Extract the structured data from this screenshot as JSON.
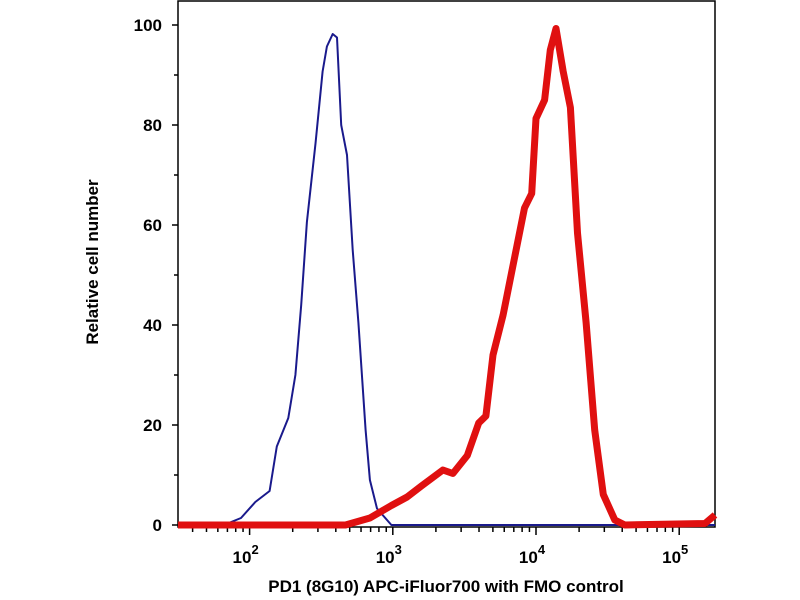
{
  "chart_data": {
    "type": "line",
    "title": "",
    "xlabel": "PD1 (8G10) APC-iFluor700 with FMO control",
    "ylabel": "Relative cell number",
    "xscale": "log",
    "xlim_log10": [
      1.5,
      5.25
    ],
    "ylim": [
      0,
      100
    ],
    "yticks": [
      0,
      20,
      40,
      60,
      80,
      100
    ],
    "ytick_labels": [
      "0",
      "20",
      "40",
      "60",
      "80",
      "100"
    ],
    "xticks_log10": [
      2,
      3,
      4,
      5
    ],
    "xtick_labels": [
      {
        "base": "10",
        "exp": "2"
      },
      {
        "base": "10",
        "exp": "3"
      },
      {
        "base": "10",
        "exp": "4"
      },
      {
        "base": "10",
        "exp": "5"
      }
    ],
    "grid": false,
    "series": [
      {
        "name": "FMO control",
        "color": "#1a1a8c",
        "x_log10": [
          1.5,
          1.82,
          1.94,
          2.04,
          2.14,
          2.19,
          2.27,
          2.32,
          2.36,
          2.4,
          2.46,
          2.51,
          2.54,
          2.58,
          2.61,
          2.64,
          2.68,
          2.72,
          2.76,
          2.81,
          2.84,
          2.89,
          2.99,
          5.25
        ],
        "y": [
          0,
          0,
          1.4,
          4.6,
          6.8,
          15.7,
          21.4,
          30,
          44,
          60.6,
          76.3,
          90.7,
          95.7,
          98.2,
          97.5,
          80,
          74,
          55,
          40.5,
          19,
          9,
          3.3,
          0,
          0
        ]
      },
      {
        "name": "PD1 (8G10) APC-iFluor700",
        "color": "#e01010",
        "x_log10": [
          1.5,
          2.67,
          2.84,
          2.99,
          3.1,
          3.2,
          3.35,
          3.42,
          3.52,
          3.6,
          3.65,
          3.7,
          3.77,
          3.85,
          3.92,
          3.97,
          4.0,
          4.06,
          4.1,
          4.14,
          4.19,
          4.24,
          4.29,
          4.35,
          4.41,
          4.47,
          4.55,
          4.62,
          5.18,
          5.25
        ],
        "y": [
          0,
          0,
          1.4,
          3.9,
          5.6,
          7.8,
          11,
          10.3,
          13.9,
          20.4,
          21.8,
          34,
          42,
          53.4,
          63.4,
          66.3,
          81.3,
          85,
          95,
          99.3,
          90.7,
          83.5,
          58.4,
          40.5,
          19,
          6.1,
          1,
          0,
          0.3,
          2
        ]
      }
    ]
  }
}
